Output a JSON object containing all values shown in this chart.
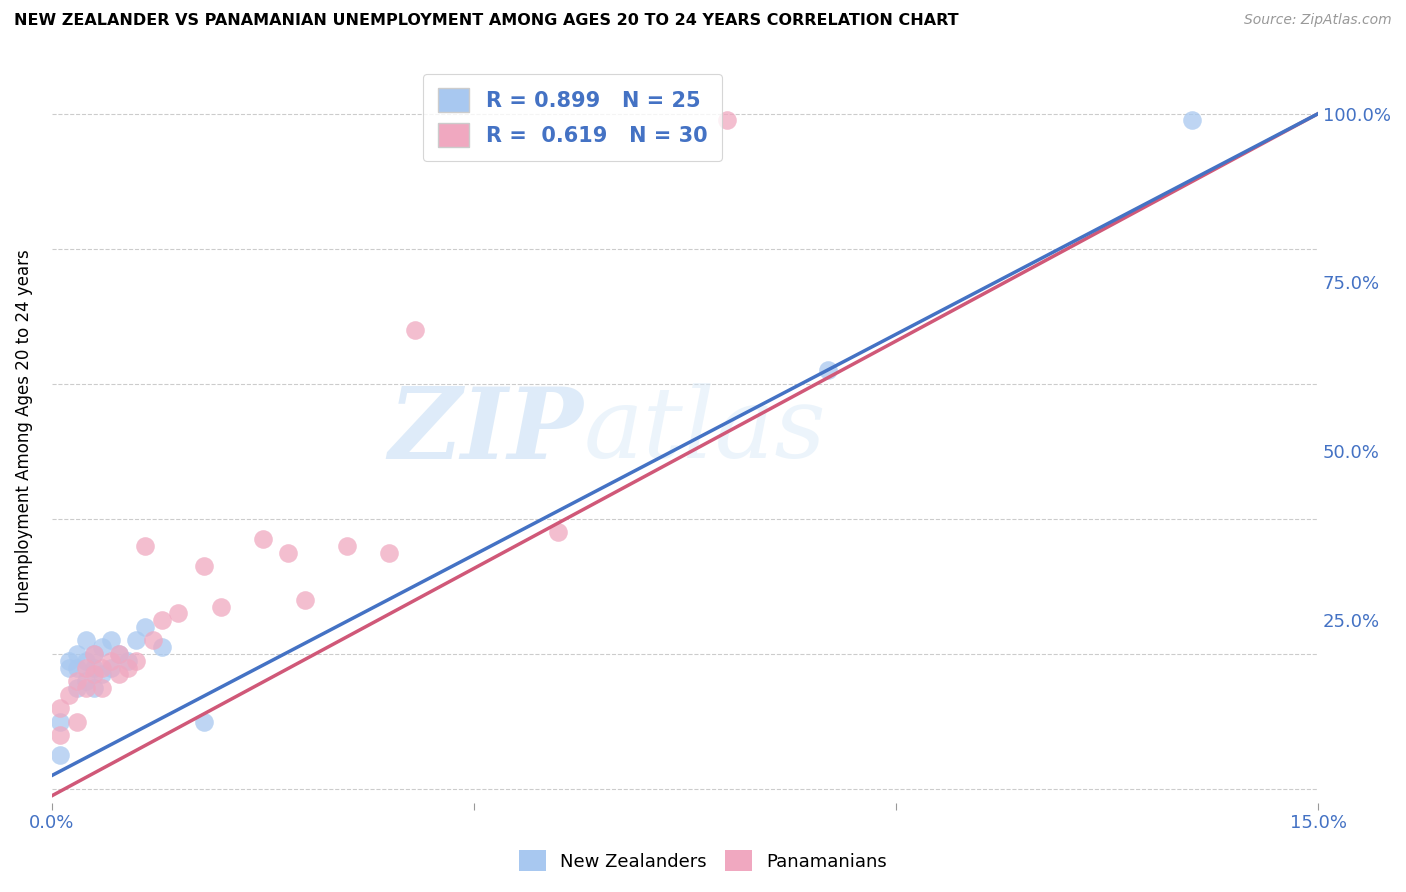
{
  "title": "NEW ZEALANDER VS PANAMANIAN UNEMPLOYMENT AMONG AGES 20 TO 24 YEARS CORRELATION CHART",
  "source": "Source: ZipAtlas.com",
  "ylabel": "Unemployment Among Ages 20 to 24 years",
  "xlim": [
    0.0,
    0.15
  ],
  "ylim": [
    -0.02,
    1.08
  ],
  "x_ticks": [
    0.0,
    0.05,
    0.1,
    0.15
  ],
  "x_tick_labels": [
    "0.0%",
    "",
    "",
    "15.0%"
  ],
  "y_ticks": [
    0.25,
    0.5,
    0.75,
    1.0
  ],
  "y_tick_labels": [
    "25.0%",
    "50.0%",
    "75.0%",
    "100.0%"
  ],
  "legend_nz_R": "0.899",
  "legend_nz_N": "25",
  "legend_pan_R": "0.619",
  "legend_pan_N": "30",
  "nz_color": "#a8c8f0",
  "pan_color": "#f0a8c0",
  "nz_line_color": "#4472c4",
  "pan_line_color": "#d05878",
  "watermark_zip": "ZIP",
  "watermark_atlas": "atlas",
  "nz_scatter_x": [
    0.001,
    0.001,
    0.002,
    0.002,
    0.003,
    0.003,
    0.003,
    0.004,
    0.004,
    0.004,
    0.005,
    0.005,
    0.005,
    0.006,
    0.006,
    0.007,
    0.007,
    0.008,
    0.009,
    0.01,
    0.011,
    0.013,
    0.018,
    0.092,
    0.135
  ],
  "nz_scatter_y": [
    0.05,
    0.1,
    0.18,
    0.19,
    0.15,
    0.18,
    0.2,
    0.16,
    0.19,
    0.22,
    0.15,
    0.18,
    0.2,
    0.17,
    0.21,
    0.18,
    0.22,
    0.2,
    0.19,
    0.22,
    0.24,
    0.21,
    0.1,
    0.62,
    0.99
  ],
  "pan_scatter_x": [
    0.001,
    0.001,
    0.002,
    0.003,
    0.003,
    0.004,
    0.004,
    0.005,
    0.005,
    0.006,
    0.006,
    0.007,
    0.008,
    0.008,
    0.009,
    0.01,
    0.011,
    0.012,
    0.013,
    0.015,
    0.018,
    0.02,
    0.025,
    0.028,
    0.03,
    0.035,
    0.04,
    0.043,
    0.06,
    0.08
  ],
  "pan_scatter_y": [
    0.08,
    0.12,
    0.14,
    0.1,
    0.16,
    0.15,
    0.18,
    0.17,
    0.2,
    0.15,
    0.18,
    0.19,
    0.17,
    0.2,
    0.18,
    0.19,
    0.36,
    0.22,
    0.25,
    0.26,
    0.33,
    0.27,
    0.37,
    0.35,
    0.28,
    0.36,
    0.35,
    0.68,
    0.38,
    0.99
  ],
  "nz_line_x": [
    0.0,
    0.15
  ],
  "nz_line_y": [
    0.02,
    1.0
  ],
  "pan_line_x": [
    0.0,
    0.15
  ],
  "pan_line_y": [
    -0.01,
    1.0
  ]
}
